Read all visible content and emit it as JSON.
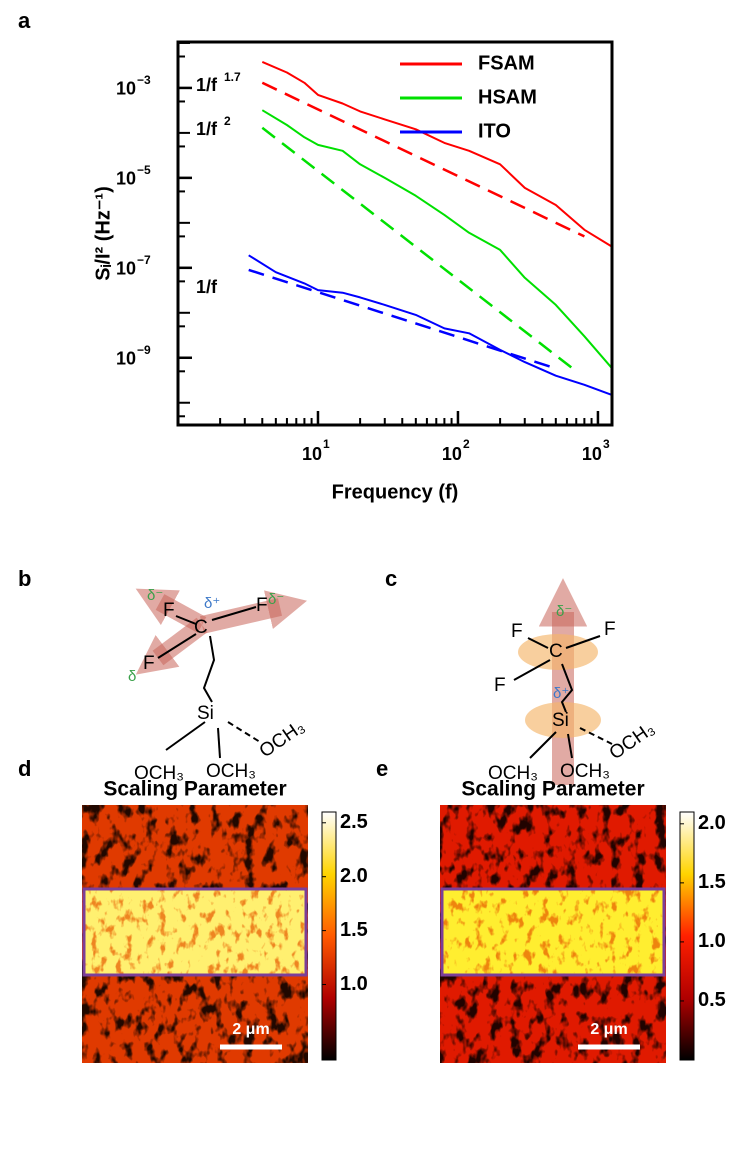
{
  "chart_data": [
    {
      "type": "line",
      "panel_label": "a",
      "x_label": "Frequency (f)",
      "y_label": "Sᵢ/I² (Hz⁻¹)",
      "xscale": "log",
      "yscale": "log",
      "xlim": [
        1,
        1260
      ],
      "ylim": [
        3.2e-11,
        0.0105
      ],
      "xticks": [
        {
          "value": 10,
          "label": "10",
          "exponent": "1"
        },
        {
          "value": 100,
          "label": "10",
          "exponent": "2"
        },
        {
          "value": 1000,
          "label": "10",
          "exponent": "3"
        }
      ],
      "yticks": [
        {
          "value": 0.001,
          "label": "10",
          "exponent": "−3"
        },
        {
          "value": 1e-05,
          "label": "10",
          "exponent": "−5"
        },
        {
          "value": 1e-07,
          "label": "10",
          "exponent": "−7"
        },
        {
          "value": 1e-09,
          "label": "10",
          "exponent": "−9"
        }
      ],
      "legend": "top-right",
      "series": [
        {
          "name": "FSAM",
          "color": "#ff0000",
          "x": [
            4,
            6,
            8,
            10,
            15,
            20,
            30,
            50,
            80,
            120,
            200,
            300,
            500,
            800,
            1250
          ],
          "values": [
            0.0038,
            0.0022,
            0.0013,
            0.0007,
            0.00045,
            0.0003,
            0.0002,
            0.00012,
            6e-05,
            4e-05,
            2e-05,
            6e-06,
            2.5e-06,
            7e-07,
            3e-07
          ]
        },
        {
          "name": "HSAM",
          "color": "#00e000",
          "x": [
            4,
            6,
            8,
            10,
            15,
            20,
            30,
            50,
            80,
            120,
            200,
            300,
            500,
            800,
            1250
          ],
          "values": [
            0.00032,
            0.00015,
            8e-05,
            5.4e-05,
            4e-05,
            2e-05,
            1e-05,
            4e-06,
            1.5e-06,
            6e-07,
            2.5e-07,
            6e-08,
            1.5e-08,
            3e-09,
            6e-10
          ]
        },
        {
          "name": "ITO",
          "color": "#0000ff",
          "x": [
            3.2,
            5,
            8,
            10,
            15,
            20,
            30,
            50,
            80,
            120,
            200,
            300,
            500,
            800,
            1250
          ],
          "values": [
            1.9e-07,
            8e-08,
            4.5e-08,
            3.2e-08,
            2.8e-08,
            2.2e-08,
            1.5e-08,
            9e-09,
            4.5e-09,
            3.5e-09,
            1.5e-09,
            8e-10,
            4e-10,
            2.5e-10,
            1.5e-10
          ]
        }
      ],
      "fits": [
        {
          "color": "#ff0000",
          "x": [
            4,
            800
          ],
          "values": [
            0.0013,
            5e-07
          ]
        },
        {
          "color": "#00e000",
          "x": [
            4,
            700
          ],
          "values": [
            0.00013,
            5e-10
          ]
        },
        {
          "color": "#0000ff",
          "x": [
            3.2,
            500
          ],
          "values": [
            9e-08,
            5.8e-10
          ]
        }
      ],
      "annotations": [
        {
          "text": "1/f",
          "exponent": "1.7"
        },
        {
          "text": "1/f",
          "exponent": "2"
        },
        {
          "text": "1/f"
        }
      ]
    },
    {
      "type": "heatmap",
      "panel_label": "d",
      "title": "Scaling Parameter",
      "clim": [
        0.3,
        2.6
      ],
      "colorbar_ticks": [
        {
          "value": 1,
          "label": "1.0"
        },
        1.5,
        {
          "value": 2,
          "label": "2.0"
        },
        2.5
      ],
      "colormap": [
        "#000000",
        "#b00000",
        "#ff5a00",
        "#ffd400",
        "#ffffff"
      ],
      "background_color": "#e03a00",
      "band_color": "#fff070",
      "band_border": "#7b3f99",
      "scale_bar": "2 μm"
    },
    {
      "type": "heatmap",
      "panel_label": "e",
      "title": "Scaling Parameter",
      "clim": [
        0,
        2.1
      ],
      "colorbar_ticks": [
        0.5,
        {
          "value": 1,
          "label": "1.0"
        },
        1.5,
        {
          "value": 2,
          "label": "2.0"
        }
      ],
      "colormap": [
        "#000000",
        "#b00000",
        "#ff2000",
        "#ffd400",
        "#ffffff"
      ],
      "background_color": "#e01a00",
      "band_color": "#ffee30",
      "band_border": "#7b3f99",
      "scale_bar": "2 μm"
    }
  ],
  "panel_b": {
    "label": "b",
    "fluorines": [
      "F",
      "F",
      "F"
    ],
    "carbon": "C",
    "charges": [
      "δ⁻",
      "δ⁺",
      "δ⁻",
      "δ"
    ],
    "silicon": "Si",
    "methoxy": [
      "OCH₃",
      "OCH₃",
      "OCH₃"
    ]
  },
  "panel_c": {
    "label": "c",
    "fluorines": [
      "F",
      "F",
      "F"
    ],
    "carbon": "C",
    "charges": [
      "δ⁻",
      "δ⁺"
    ],
    "silicon": "Si",
    "methoxy": [
      "OCH₃",
      "OCH₃",
      "OCH₃"
    ]
  }
}
